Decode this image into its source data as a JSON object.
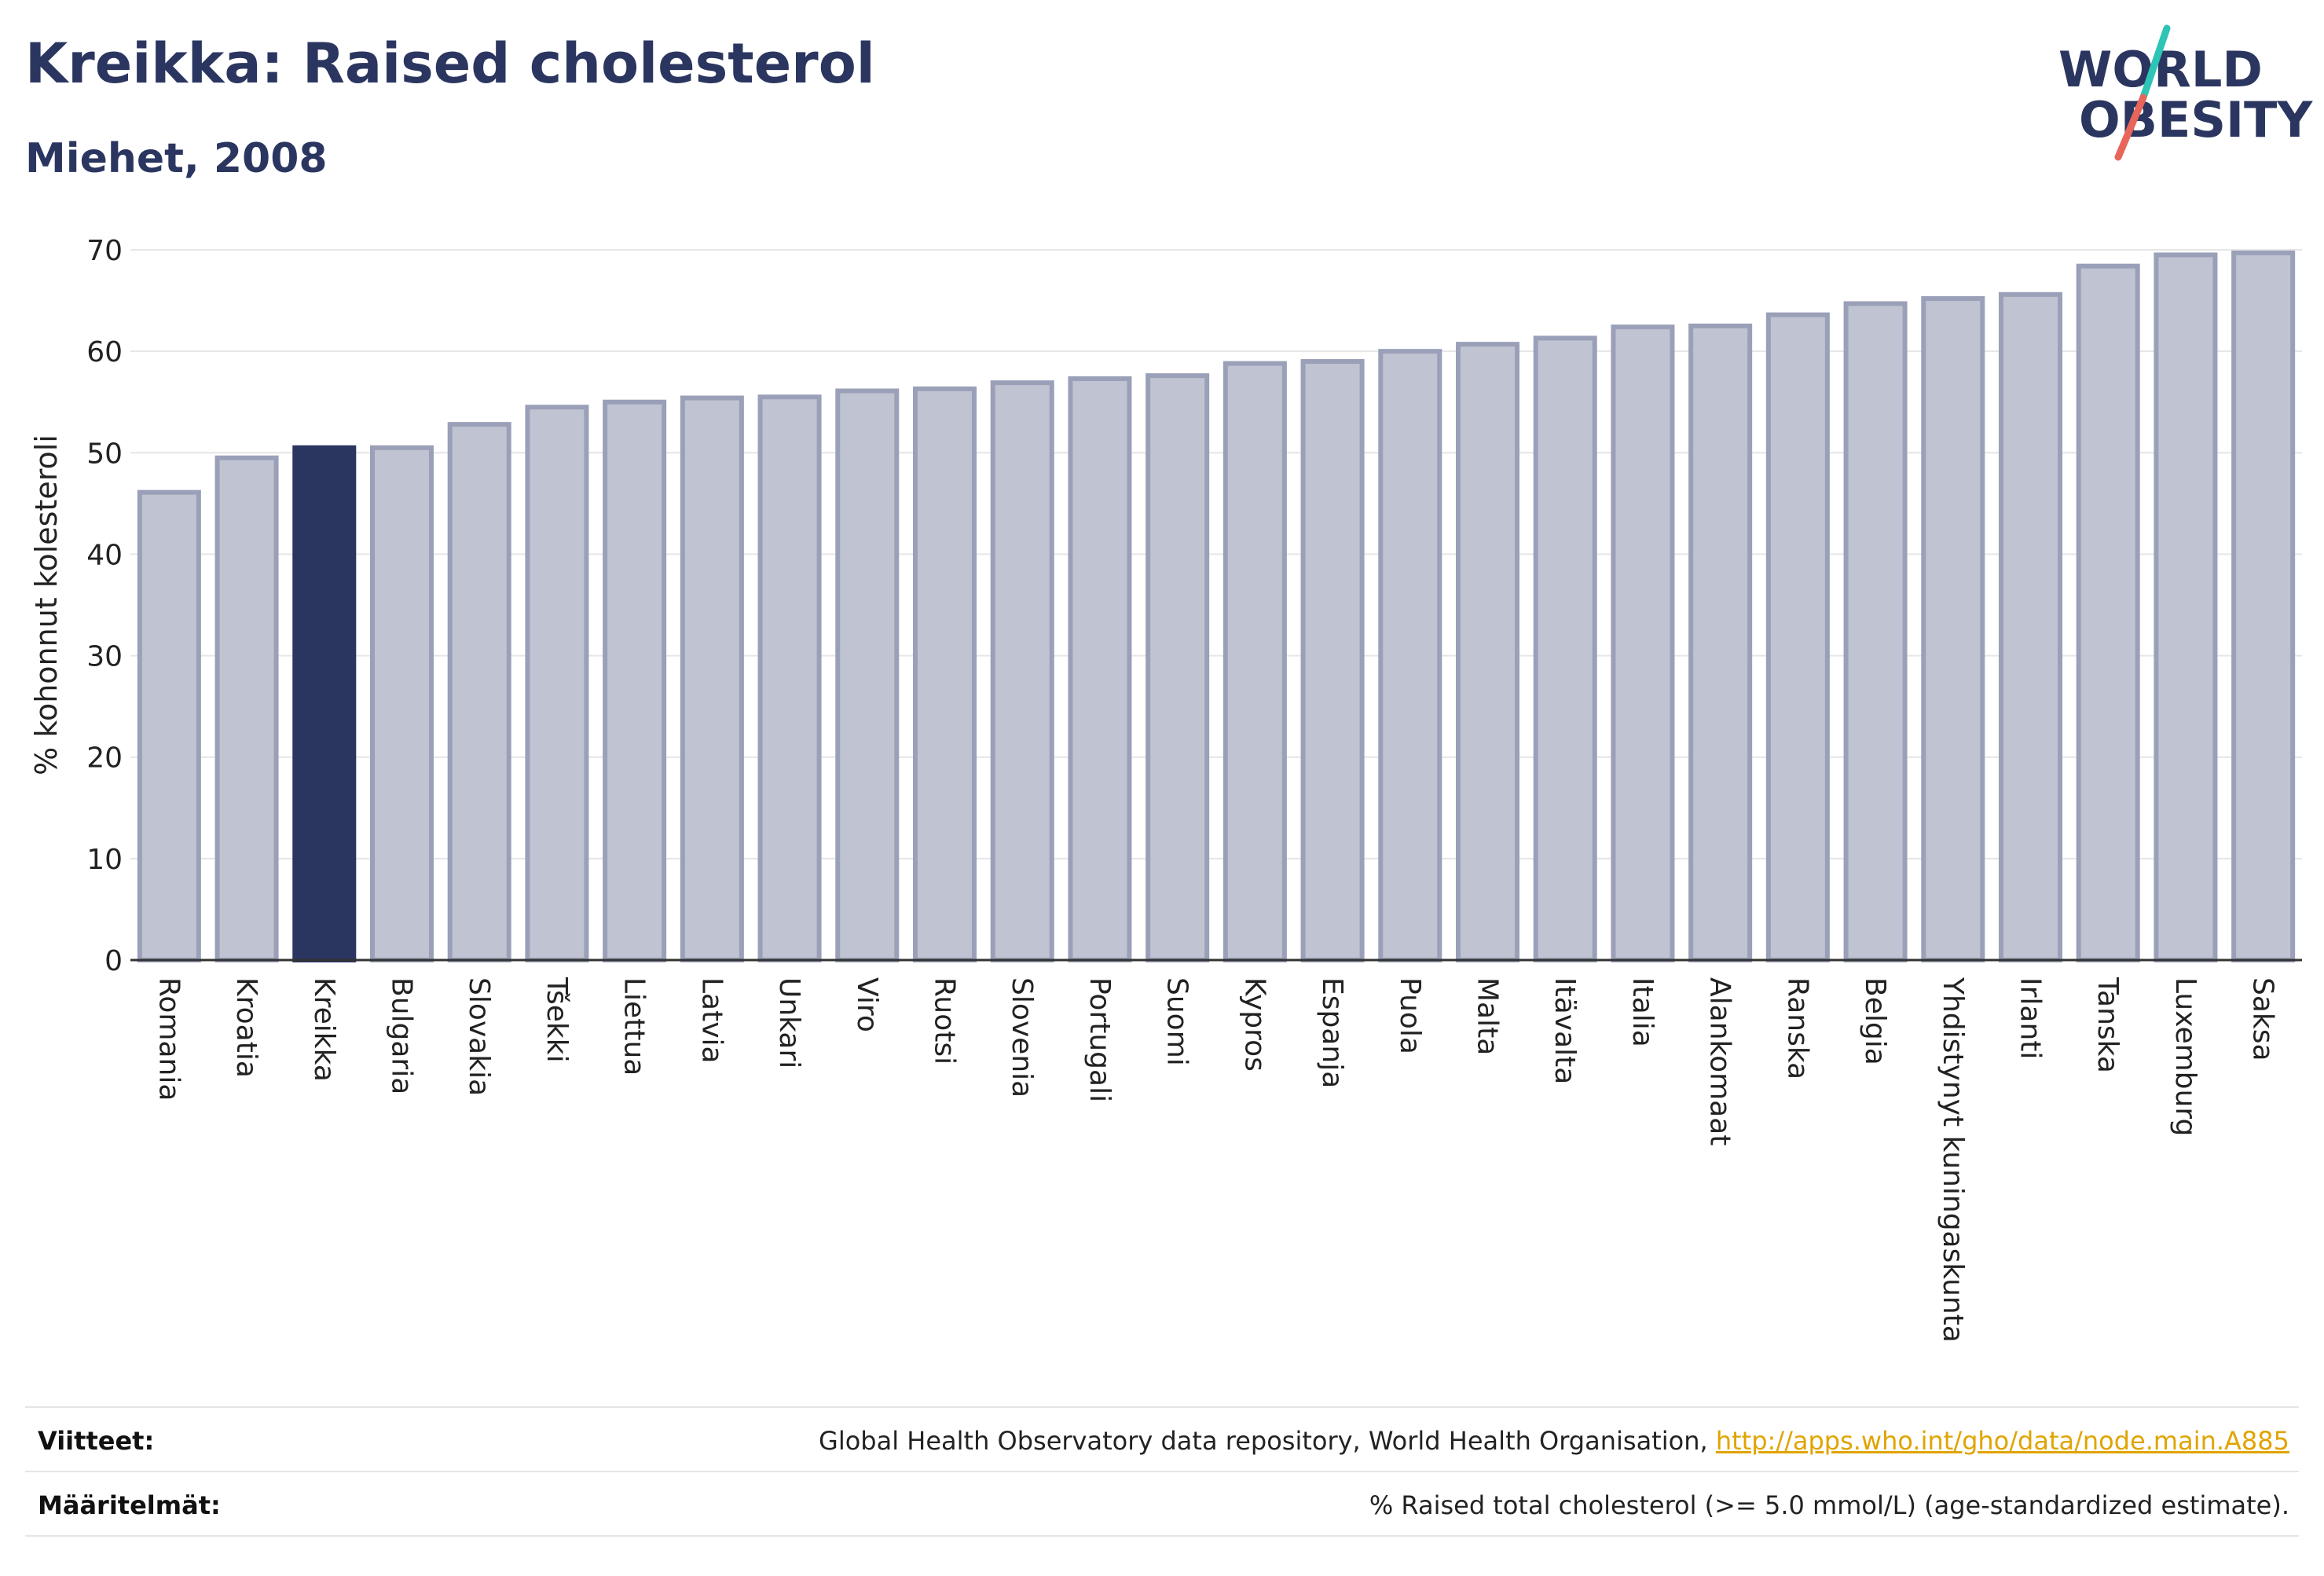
{
  "header": {
    "title": "Kreikka: Raised cholesterol",
    "subtitle": "Miehet, 2008"
  },
  "logo": {
    "line1": "WORLD",
    "line2": "OBESITY",
    "slash_colors": [
      "#2ec4b6",
      "#e8655a"
    ]
  },
  "chart_data": {
    "type": "bar",
    "ylabel": "% kohonnut kolesteroli",
    "ylim": [
      0,
      70
    ],
    "yticks": [
      0,
      10,
      20,
      30,
      40,
      50,
      60,
      70
    ],
    "grid": true,
    "highlight": "Kreikka",
    "colors": {
      "bar": "#c0c3d1",
      "bar_border": "#9aa0b8",
      "highlight": "#2b3660"
    },
    "categories": [
      "Romania",
      "Kroatia",
      "Kreikka",
      "Bulgaria",
      "Slovakia",
      "Tšekki",
      "Liettua",
      "Latvia",
      "Unkari",
      "Viro",
      "Ruotsi",
      "Slovenia",
      "Portugali",
      "Suomi",
      "Kypros",
      "Espanja",
      "Puola",
      "Malta",
      "Itävalta",
      "Italia",
      "Alankomaat",
      "Ranska",
      "Belgia",
      "Yhdistynyt kuningaskunta",
      "Irlanti",
      "Tanska",
      "Luxemburg",
      "Saksa"
    ],
    "values": [
      46.1,
      49.5,
      50.5,
      50.5,
      52.8,
      54.5,
      55.0,
      55.4,
      55.5,
      56.1,
      56.3,
      56.9,
      57.3,
      57.6,
      58.8,
      59.0,
      60.0,
      60.7,
      61.3,
      62.4,
      62.5,
      63.6,
      64.7,
      65.2,
      65.6,
      68.4,
      69.5,
      69.7
    ]
  },
  "footer": {
    "references_label": "Viitteet:",
    "references_text": "Global Health Observatory data repository, World Health Organisation, ",
    "references_link": "http://apps.who.int/gho/data/node.main.A885",
    "definitions_label": "Määritelmät:",
    "definitions_text": "% Raised total cholesterol (>= 5.0 mmol/L) (age-standardized estimate)."
  }
}
